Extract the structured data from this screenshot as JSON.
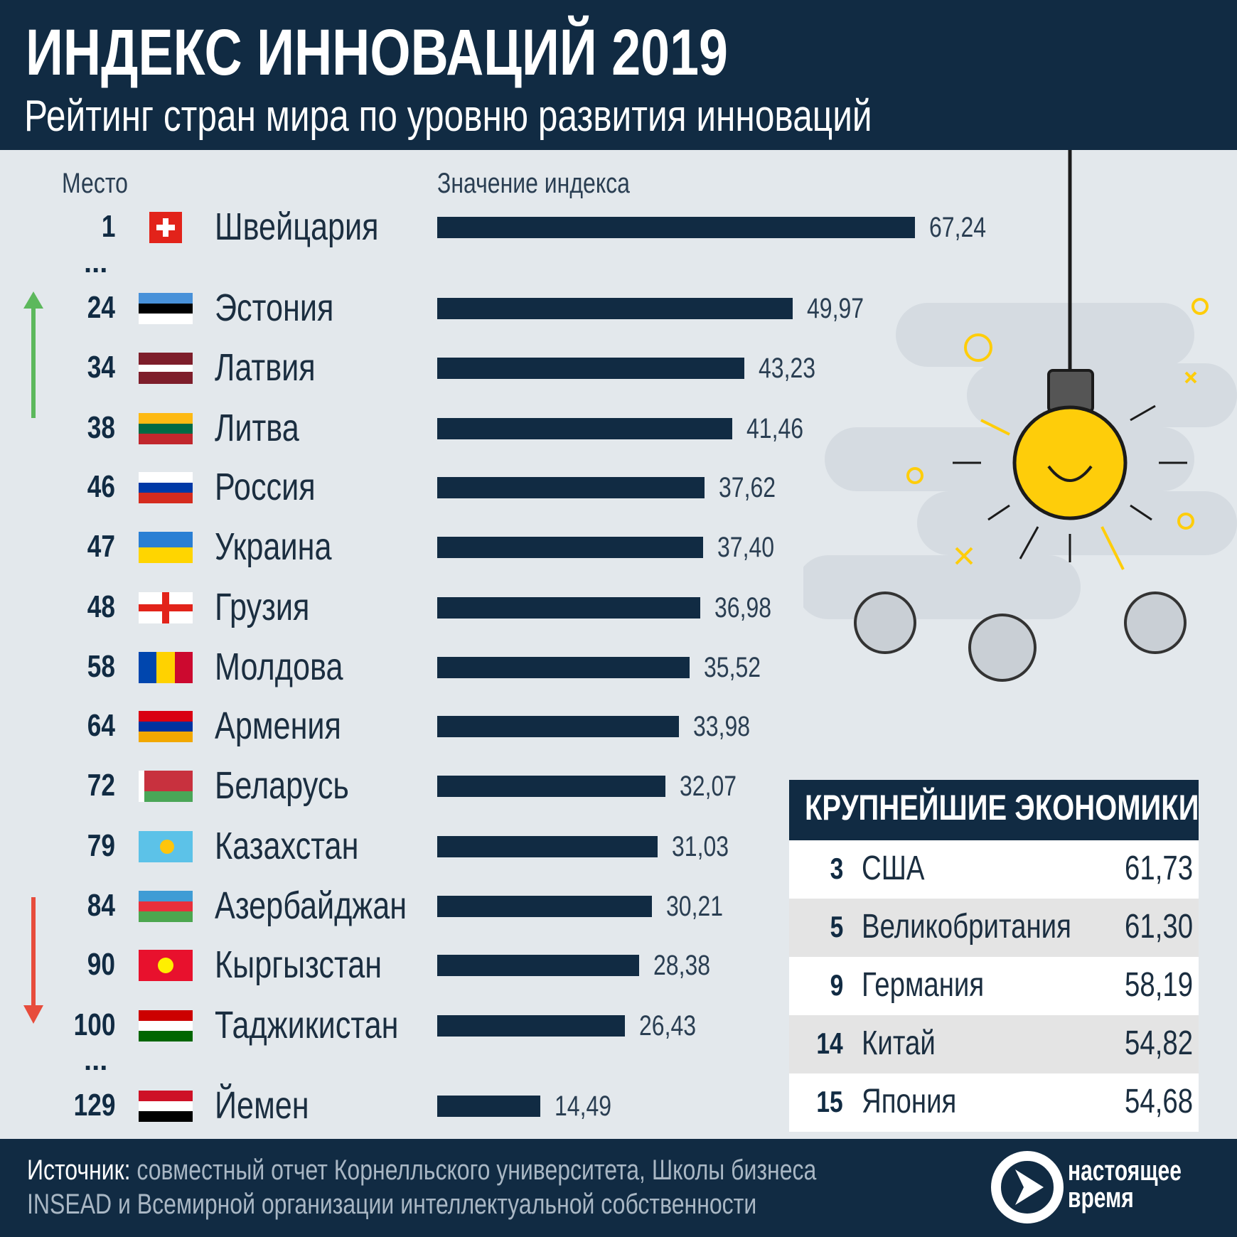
{
  "title": "ИНДЕКС ИННОВАЦИЙ 2019",
  "subtitle": "Рейтинг стран мира по уровню развития инноваций",
  "chart_data": {
    "type": "bar",
    "orientation": "horizontal",
    "column_rank": "Место",
    "column_value": "Значение индекса",
    "colors": {
      "bar": "#112b43",
      "background": "#e3e8ec",
      "up_arrow": "#5cb85c",
      "down_arrow": "#e74c3c"
    },
    "ellipsis": "...",
    "rows": [
      {
        "rank": "1",
        "country": "Швейцария",
        "value": 67.24,
        "label": "67,24",
        "flag": "switzerland"
      },
      {
        "rank": "24",
        "country": "Эстония",
        "value": 49.97,
        "label": "49,97",
        "flag": "estonia"
      },
      {
        "rank": "34",
        "country": "Латвия",
        "value": 43.23,
        "label": "43,23",
        "flag": "latvia"
      },
      {
        "rank": "38",
        "country": "Литва",
        "value": 41.46,
        "label": "41,46",
        "flag": "lithuania"
      },
      {
        "rank": "46",
        "country": "Россия",
        "value": 37.62,
        "label": "37,62",
        "flag": "russia"
      },
      {
        "rank": "47",
        "country": "Украина",
        "value": 37.4,
        "label": "37,40",
        "flag": "ukraine"
      },
      {
        "rank": "48",
        "country": "Грузия",
        "value": 36.98,
        "label": "36,98",
        "flag": "georgia"
      },
      {
        "rank": "58",
        "country": "Молдова",
        "value": 35.52,
        "label": "35,52",
        "flag": "moldova"
      },
      {
        "rank": "64",
        "country": "Армения",
        "value": 33.98,
        "label": "33,98",
        "flag": "armenia"
      },
      {
        "rank": "72",
        "country": "Беларусь",
        "value": 32.07,
        "label": "32,07",
        "flag": "belarus"
      },
      {
        "rank": "79",
        "country": "Казахстан",
        "value": 31.03,
        "label": "31,03",
        "flag": "kazakhstan"
      },
      {
        "rank": "84",
        "country": "Азербайджан",
        "value": 30.21,
        "label": "30,21",
        "flag": "azerbaijan"
      },
      {
        "rank": "90",
        "country": "Кыргызстан",
        "value": 28.38,
        "label": "28,38",
        "flag": "kyrgyzstan"
      },
      {
        "rank": "100",
        "country": "Таджикистан",
        "value": 26.43,
        "label": "26,43",
        "flag": "tajikistan"
      },
      {
        "rank": "129",
        "country": "Йемен",
        "value": 14.49,
        "label": "14,49",
        "flag": "yemen"
      }
    ]
  },
  "economies": {
    "title": "КРУПНЕЙШИЕ ЭКОНОМИКИ",
    "rows": [
      {
        "rank": "3",
        "country": "США",
        "value": "61,73"
      },
      {
        "rank": "5",
        "country": "Великобритания",
        "value": "61,30"
      },
      {
        "rank": "9",
        "country": "Германия",
        "value": "58,19"
      },
      {
        "rank": "14",
        "country": "Китай",
        "value": "54,82"
      },
      {
        "rank": "15",
        "country": "Япония",
        "value": "54,68"
      }
    ]
  },
  "footer": {
    "source_label": "Источник:",
    "source_line1": " совместный отчет Корнелльского университета, Школы бизнеса",
    "source_line2": "INSEAD и Всемирной организации интеллектуальной собственности",
    "logo_text": "настоящее время"
  }
}
